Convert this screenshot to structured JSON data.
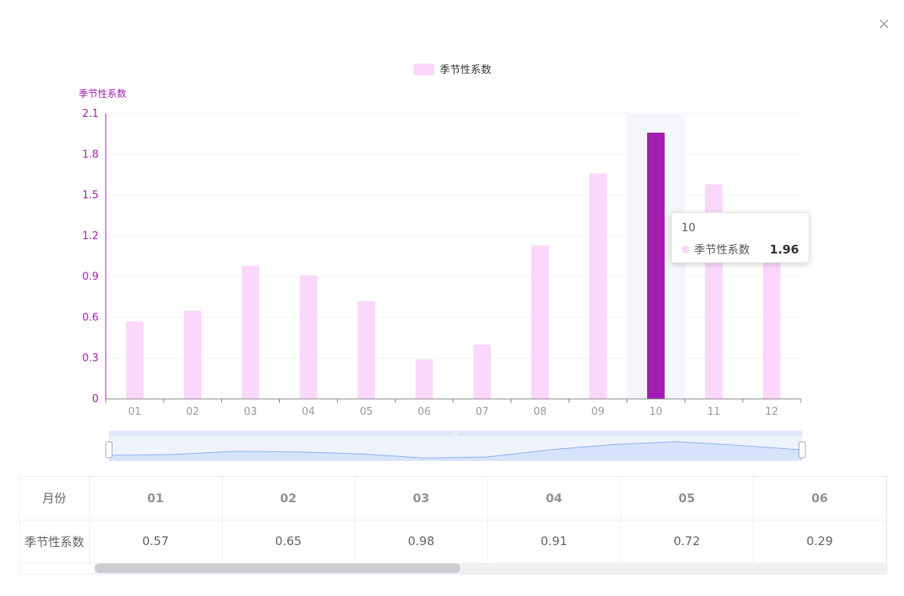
{
  "close_label": "×",
  "chart_data": {
    "type": "bar",
    "legend": [
      "季节性系数"
    ],
    "ylabel": "季节性系数",
    "xlabel": "",
    "categories": [
      "01",
      "02",
      "03",
      "04",
      "05",
      "06",
      "07",
      "08",
      "09",
      "10",
      "11",
      "12"
    ],
    "series": [
      {
        "name": "季节性系数",
        "values": [
          0.57,
          0.65,
          0.98,
          0.91,
          0.72,
          0.29,
          0.4,
          1.13,
          1.66,
          1.96,
          1.58,
          1.12
        ]
      }
    ],
    "ylim": [
      0,
      2.1
    ],
    "yticks": [
      "0",
      "0.3",
      "0.6",
      "0.9",
      "1.2",
      "1.5",
      "1.8",
      "2.1"
    ],
    "highlight_index": 9,
    "legend_position": "top-center",
    "colors": {
      "bar": "#fad7fb",
      "bar_highlight": "#a21caf",
      "axis": "#a21caf",
      "hover_band": "#f5f6fa",
      "zoom_fill": "#d7e3fb",
      "zoom_line": "#8fb0f0"
    }
  },
  "tooltip": {
    "title": "10",
    "series_name": "季节性系数",
    "value": "1.96"
  },
  "table": {
    "row1_header": "月份",
    "row2_header": "季节性系数",
    "months": [
      "01",
      "02",
      "03",
      "04",
      "05",
      "06"
    ],
    "values": [
      "0.57",
      "0.65",
      "0.98",
      "0.91",
      "0.72",
      "0.29"
    ]
  }
}
